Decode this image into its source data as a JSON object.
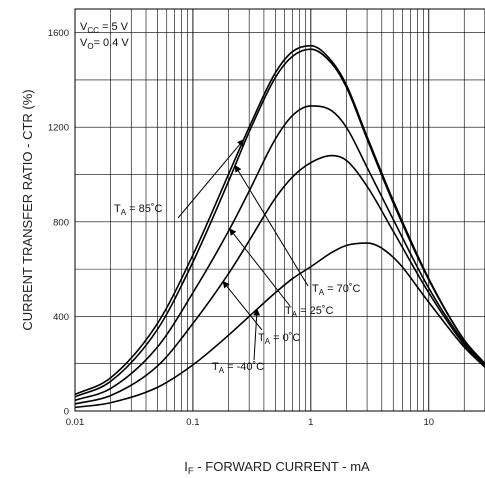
{
  "chart_data": {
    "type": "line",
    "title": "",
    "xlabel": {
      "main": "I",
      "sub": "F",
      "rest": " - FORWARD CURRENT - mA"
    },
    "ylabel": "CURRENT TRANSFER RATIO - CTR (%)",
    "x_scale": "log",
    "xlim": [
      0.01,
      30
    ],
    "ylim": [
      0,
      1700
    ],
    "x_ticks": [
      0.01,
      0.1,
      1,
      10
    ],
    "x_tick_labels": [
      "0.01",
      "0.1",
      "1",
      "10"
    ],
    "y_ticks": [
      0,
      400,
      800,
      1200,
      1600
    ],
    "y_tick_labels": [
      "0",
      "400",
      "800",
      "1200",
      "1600"
    ],
    "grid": true,
    "conditions": [
      {
        "main": "V",
        "sub": "CC",
        "rest": " = 5 V"
      },
      {
        "main": "V",
        "sub": "O",
        "rest": "= 0.4 V"
      }
    ],
    "series": [
      {
        "name": {
          "main": "T",
          "sub": "A",
          "rest": " = 85˚C"
        },
        "x": [
          0.01,
          0.02,
          0.05,
          0.1,
          0.2,
          0.3,
          0.5,
          0.7,
          1,
          1.5,
          2,
          3,
          5,
          10,
          20,
          30
        ],
        "y": [
          70,
          140,
          370,
          660,
          1000,
          1200,
          1430,
          1520,
          1545,
          1480,
          1380,
          1160,
          890,
          560,
          300,
          200
        ]
      },
      {
        "name": {
          "main": "T",
          "sub": "A",
          "rest": " = 70˚C"
        },
        "x": [
          0.01,
          0.02,
          0.05,
          0.1,
          0.2,
          0.3,
          0.5,
          0.7,
          1,
          1.5,
          2,
          3,
          5,
          10,
          20,
          30
        ],
        "y": [
          60,
          125,
          345,
          630,
          970,
          1180,
          1410,
          1500,
          1530,
          1470,
          1370,
          1150,
          880,
          555,
          300,
          200
        ]
      },
      {
        "name": {
          "main": "T",
          "sub": "A",
          "rest": " = 25˚C"
        },
        "x": [
          0.01,
          0.02,
          0.05,
          0.1,
          0.2,
          0.3,
          0.5,
          0.7,
          1,
          1.5,
          2,
          3,
          5,
          10,
          20,
          30
        ],
        "y": [
          45,
          95,
          270,
          500,
          760,
          930,
          1150,
          1250,
          1290,
          1270,
          1200,
          1030,
          810,
          520,
          290,
          195
        ]
      },
      {
        "name": {
          "main": "T",
          "sub": "A",
          "rest": " = 0˚C"
        },
        "x": [
          0.01,
          0.02,
          0.05,
          0.1,
          0.2,
          0.3,
          0.5,
          0.7,
          1,
          1.5,
          2,
          3,
          5,
          10,
          20,
          30
        ],
        "y": [
          30,
          65,
          190,
          370,
          580,
          720,
          900,
          990,
          1050,
          1080,
          1060,
          950,
          760,
          500,
          280,
          190
        ]
      },
      {
        "name": {
          "main": "T",
          "sub": "A",
          "rest": " = -40˚C"
        },
        "x": [
          0.01,
          0.02,
          0.05,
          0.1,
          0.2,
          0.3,
          0.5,
          0.7,
          1,
          1.5,
          2,
          3,
          5,
          10,
          20,
          30
        ],
        "y": [
          15,
          35,
          100,
          195,
          320,
          400,
          500,
          560,
          610,
          670,
          700,
          710,
          650,
          460,
          270,
          185
        ]
      }
    ],
    "annotations": [
      {
        "series": 0,
        "label": {
          "main": "T",
          "sub": "A",
          "rest": " = 85˚C"
        }
      },
      {
        "series": 1,
        "label": {
          "main": "T",
          "sub": "A",
          "rest": " = 70˚C"
        }
      },
      {
        "series": 2,
        "label": {
          "main": "T",
          "sub": "A",
          "rest": " = 25˚C"
        }
      },
      {
        "series": 3,
        "label": {
          "main": "T",
          "sub": "A",
          "rest": " = 0˚C"
        }
      },
      {
        "series": 4,
        "label": {
          "main": "T",
          "sub": "A",
          "rest": " = -40˚C"
        }
      }
    ]
  }
}
